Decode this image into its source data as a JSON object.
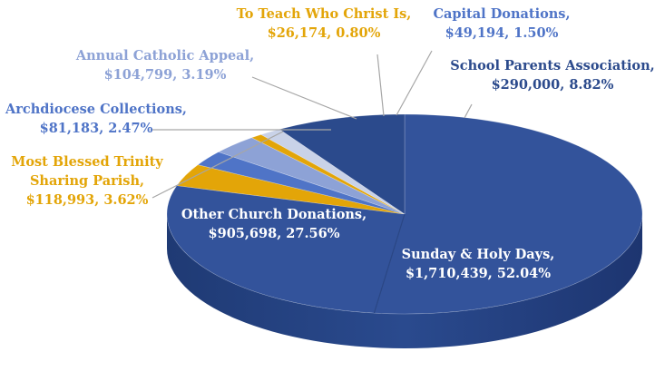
{
  "chart_data": {
    "type": "pie",
    "style": "3d",
    "title": "",
    "legend": "none",
    "slices": [
      {
        "label": "Sunday & Holy Days",
        "value_text": "$1,710,439",
        "pct_text": "52.04%",
        "value": 1710439,
        "percent": 52.04,
        "color": "#33539b",
        "label_color": "#ffffff"
      },
      {
        "label": "Other Church Donations",
        "value_text": "$905,698",
        "pct_text": "27.56%",
        "value": 905698,
        "percent": 27.56,
        "color": "#33539b",
        "label_color": "#ffffff"
      },
      {
        "label": "Most Blessed Trinity Sharing Parish",
        "value_text": "$118,993",
        "pct_text": "3.62%",
        "value": 118993,
        "percent": 3.62,
        "color": "#e3a508",
        "label_color": "#e3a508"
      },
      {
        "label": "Archdiocese Collections",
        "value_text": "$81,183",
        "pct_text": "2.47%",
        "value": 81183,
        "percent": 2.47,
        "color": "#4f74c7",
        "label_color": "#4f74c7"
      },
      {
        "label": "Annual Catholic Appeal",
        "value_text": "$104,799",
        "pct_text": "3.19%",
        "value": 104799,
        "percent": 3.19,
        "color": "#8da2d6",
        "label_color": "#8da2d6"
      },
      {
        "label": "To Teach Who Christ Is",
        "value_text": "$26,174",
        "pct_text": "0.80%",
        "value": 26174,
        "percent": 0.8,
        "color": "#e3a508",
        "label_color": "#e3a508"
      },
      {
        "label": "Capital Donations",
        "value_text": "$49,194",
        "pct_text": "1.50%",
        "value": 49194,
        "percent": 1.5,
        "color": "#c9d2e8",
        "label_color": "#4f74c7"
      },
      {
        "label": "School Parents Association",
        "value_text": "$290,000",
        "pct_text": "8.82%",
        "value": 290000,
        "percent": 8.82,
        "color": "#2b4a8c",
        "label_color": "#2b4a8c"
      }
    ]
  }
}
